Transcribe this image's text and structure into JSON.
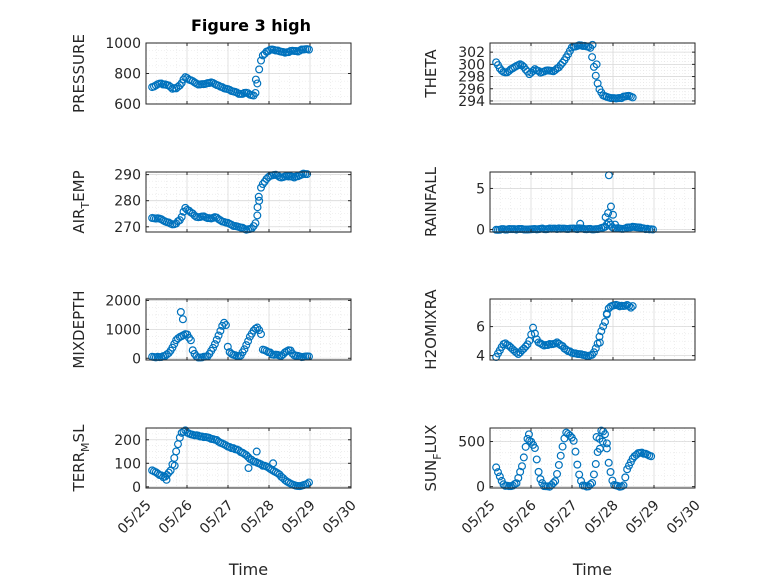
{
  "figure": {
    "title": "Figure 3 high"
  },
  "colors": {
    "marker": "#0072BD",
    "grid": "#d9d9d9",
    "axis": "#262626"
  },
  "chart_data": [
    {
      "id": "pressure",
      "type": "scatter",
      "ylabel": "PRESSURE",
      "ylabel_sub": "",
      "ylim": [
        600,
        1000
      ],
      "yticks": [
        600,
        800,
        1000
      ],
      "xlim": [
        0,
        5
      ],
      "x_tick_labels": [
        "05/25",
        "05/26",
        "05/27",
        "05/28",
        "05/29",
        "05/30"
      ],
      "show_x_ticklabels": false,
      "series_knots": [
        [
          0.15,
          710
        ],
        [
          0.35,
          735
        ],
        [
          0.55,
          720
        ],
        [
          0.65,
          700
        ],
        [
          0.75,
          705
        ],
        [
          0.85,
          730
        ],
        [
          0.95,
          775
        ],
        [
          1.1,
          755
        ],
        [
          1.3,
          725
        ],
        [
          1.5,
          735
        ],
        [
          1.6,
          745
        ],
        [
          1.75,
          720
        ],
        [
          1.9,
          705
        ],
        [
          2.1,
          685
        ],
        [
          2.3,
          665
        ],
        [
          2.45,
          675
        ],
        [
          2.55,
          660
        ],
        [
          2.65,
          655
        ],
        [
          2.7,
          700
        ],
        [
          2.78,
          870
        ],
        [
          2.85,
          920
        ],
        [
          2.95,
          945
        ],
        [
          3.05,
          960
        ],
        [
          3.2,
          950
        ],
        [
          3.4,
          935
        ],
        [
          3.55,
          950
        ],
        [
          3.7,
          945
        ],
        [
          3.85,
          960
        ],
        [
          4.0,
          955
        ]
      ],
      "outliers": [
        [
          2.68,
          760
        ]
      ]
    },
    {
      "id": "theta",
      "type": "scatter",
      "ylabel": "THETA",
      "ylabel_sub": "",
      "ylim": [
        293.5,
        303.5
      ],
      "yticks": [
        294,
        296,
        298,
        300,
        302
      ],
      "xlim": [
        0,
        5
      ],
      "x_tick_labels": [
        "05/25",
        "05/26",
        "05/27",
        "05/28",
        "05/29",
        "05/30"
      ],
      "show_x_ticklabels": false,
      "series_knots": [
        [
          0.15,
          300.4
        ],
        [
          0.25,
          299.2
        ],
        [
          0.35,
          298.6
        ],
        [
          0.45,
          298.8
        ],
        [
          0.6,
          299.6
        ],
        [
          0.75,
          300.0
        ],
        [
          0.85,
          299.4
        ],
        [
          0.95,
          298.4
        ],
        [
          1.1,
          299.2
        ],
        [
          1.25,
          298.6
        ],
        [
          1.4,
          299.1
        ],
        [
          1.55,
          298.8
        ],
        [
          1.7,
          299.6
        ],
        [
          1.8,
          300.6
        ],
        [
          1.9,
          301.6
        ],
        [
          2.0,
          302.8
        ],
        [
          2.2,
          303.1
        ],
        [
          2.35,
          303.0
        ],
        [
          2.45,
          302.7
        ],
        [
          2.55,
          299.0
        ],
        [
          2.65,
          296.2
        ],
        [
          2.75,
          295.0
        ],
        [
          2.85,
          294.6
        ],
        [
          3.0,
          294.4
        ],
        [
          3.2,
          294.5
        ],
        [
          3.35,
          294.9
        ],
        [
          3.45,
          294.7
        ],
        [
          3.5,
          294.6
        ]
      ],
      "outliers": [
        [
          2.5,
          303.2
        ],
        [
          2.6,
          300.0
        ]
      ]
    },
    {
      "id": "air_temp",
      "type": "scatter",
      "ylabel": "AIR",
      "ylabel_sub": "T",
      "ylabel_after": "EMP",
      "ylim": [
        268,
        291
      ],
      "yticks": [
        270,
        280,
        290
      ],
      "xlim": [
        0,
        5
      ],
      "x_tick_labels": [
        "05/25",
        "05/26",
        "05/27",
        "05/28",
        "05/29",
        "05/30"
      ],
      "show_x_ticklabels": false,
      "series_knots": [
        [
          0.15,
          273.5
        ],
        [
          0.35,
          273.0
        ],
        [
          0.55,
          271.5
        ],
        [
          0.7,
          270.8
        ],
        [
          0.85,
          273.0
        ],
        [
          0.95,
          277.2
        ],
        [
          1.1,
          275.5
        ],
        [
          1.25,
          273.5
        ],
        [
          1.4,
          274.0
        ],
        [
          1.55,
          273.2
        ],
        [
          1.7,
          273.8
        ],
        [
          1.85,
          272.0
        ],
        [
          2.0,
          271.5
        ],
        [
          2.15,
          270.2
        ],
        [
          2.3,
          269.8
        ],
        [
          2.45,
          269.0
        ],
        [
          2.6,
          269.3
        ],
        [
          2.7,
          272.5
        ],
        [
          2.8,
          285.0
        ],
        [
          2.9,
          287.5
        ],
        [
          3.0,
          289.2
        ],
        [
          3.15,
          290.0
        ],
        [
          3.3,
          288.8
        ],
        [
          3.45,
          289.5
        ],
        [
          3.6,
          289.0
        ],
        [
          3.75,
          289.6
        ],
        [
          3.85,
          290.3
        ],
        [
          3.95,
          290.0
        ]
      ],
      "outliers": [
        [
          2.72,
          277.5
        ],
        [
          2.75,
          281.5
        ]
      ]
    },
    {
      "id": "rainfall",
      "type": "scatter",
      "ylabel": "RAINFALL",
      "ylabel_sub": "",
      "ylim": [
        -0.3,
        7
      ],
      "yticks": [
        0,
        5
      ],
      "xlim": [
        0,
        5
      ],
      "x_tick_labels": [
        "05/25",
        "05/26",
        "05/27",
        "05/28",
        "05/29",
        "05/30"
      ],
      "show_x_ticklabels": false,
      "series_knots": [
        [
          0.15,
          0
        ],
        [
          1.0,
          0.05
        ],
        [
          1.5,
          0.1
        ],
        [
          2.2,
          0.1
        ],
        [
          2.4,
          0.05
        ],
        [
          2.6,
          0
        ],
        [
          2.8,
          0.3
        ],
        [
          2.9,
          0.9
        ],
        [
          3.0,
          0.2
        ],
        [
          3.2,
          0.1
        ],
        [
          3.5,
          0.3
        ],
        [
          3.65,
          0.2
        ],
        [
          3.85,
          0.05
        ],
        [
          4.0,
          0
        ]
      ],
      "outliers": [
        [
          2.2,
          0.7
        ],
        [
          2.82,
          1.5
        ],
        [
          2.88,
          2.0
        ],
        [
          2.95,
          2.8
        ],
        [
          3.0,
          1.8
        ],
        [
          2.9,
          6.6
        ],
        [
          3.05,
          0.6
        ]
      ]
    },
    {
      "id": "mixdepth",
      "type": "scatter",
      "ylabel": "MIXDEPTH",
      "ylabel_sub": "",
      "ylim": [
        -60,
        2050
      ],
      "yticks": [
        0,
        1000,
        2000
      ],
      "xlim": [
        0,
        5
      ],
      "x_tick_labels": [
        "05/25",
        "05/26",
        "05/27",
        "05/28",
        "05/29",
        "05/30"
      ],
      "show_x_ticklabels": false,
      "series_knots": [
        [
          0.15,
          40
        ],
        [
          0.45,
          60
        ],
        [
          0.6,
          250
        ],
        [
          0.75,
          650
        ],
        [
          0.9,
          800
        ],
        [
          1.0,
          850
        ],
        [
          1.1,
          600
        ],
        [
          1.15,
          200
        ],
        [
          1.25,
          30
        ],
        [
          1.5,
          60
        ],
        [
          1.65,
          400
        ],
        [
          1.8,
          900
        ],
        [
          1.9,
          1250
        ],
        [
          1.95,
          1150
        ],
        [
          2.0,
          300
        ],
        [
          2.1,
          120
        ],
        [
          2.3,
          80
        ],
        [
          2.4,
          300
        ],
        [
          2.55,
          800
        ],
        [
          2.7,
          1100
        ],
        [
          2.8,
          900
        ],
        [
          2.85,
          300
        ],
        [
          2.95,
          260
        ],
        [
          3.1,
          120
        ],
        [
          3.3,
          100
        ],
        [
          3.5,
          300
        ],
        [
          3.6,
          120
        ],
        [
          3.8,
          40
        ],
        [
          4.0,
          80
        ]
      ],
      "outliers": [
        [
          0.85,
          1600
        ],
        [
          0.9,
          1350
        ]
      ]
    },
    {
      "id": "h2omixra",
      "type": "scatter",
      "ylabel": "H2OMIXRA",
      "ylabel_sub": "",
      "ylim": [
        3.7,
        7.9
      ],
      "yticks": [
        4,
        6
      ],
      "xlim": [
        0,
        5
      ],
      "x_tick_labels": [
        "05/25",
        "05/26",
        "05/27",
        "05/28",
        "05/29",
        "05/30"
      ],
      "show_x_ticklabels": false,
      "series_knots": [
        [
          0.15,
          3.9
        ],
        [
          0.25,
          4.4
        ],
        [
          0.35,
          4.9
        ],
        [
          0.5,
          4.6
        ],
        [
          0.6,
          4.3
        ],
        [
          0.7,
          4.1
        ],
        [
          0.8,
          4.4
        ],
        [
          0.95,
          4.9
        ],
        [
          1.05,
          5.9
        ],
        [
          1.15,
          5.0
        ],
        [
          1.3,
          4.7
        ],
        [
          1.5,
          4.8
        ],
        [
          1.65,
          4.9
        ],
        [
          1.75,
          4.7
        ],
        [
          1.85,
          4.4
        ],
        [
          2.0,
          4.2
        ],
        [
          2.2,
          4.1
        ],
        [
          2.4,
          3.95
        ],
        [
          2.5,
          4.05
        ],
        [
          2.6,
          4.6
        ],
        [
          2.7,
          5.6
        ],
        [
          2.8,
          6.3
        ],
        [
          2.9,
          7.3
        ],
        [
          3.05,
          7.5
        ],
        [
          3.2,
          7.4
        ],
        [
          3.35,
          7.5
        ],
        [
          3.45,
          7.3
        ],
        [
          3.5,
          7.5
        ]
      ],
      "outliers": [
        [
          2.68,
          4.9
        ],
        [
          2.85,
          6.9
        ]
      ]
    },
    {
      "id": "terr_msl",
      "type": "scatter",
      "ylabel": "TERR",
      "ylabel_sub": "M",
      "ylabel_after": "SL",
      "ylim": [
        -5,
        250
      ],
      "yticks": [
        0,
        100,
        200
      ],
      "xlim": [
        0,
        5
      ],
      "x_tick_labels": [
        "05/25",
        "05/26",
        "05/27",
        "05/28",
        "05/29",
        "05/30"
      ],
      "show_x_ticklabels": true,
      "series_knots": [
        [
          0.15,
          70
        ],
        [
          0.3,
          55
        ],
        [
          0.45,
          40
        ],
        [
          0.6,
          70
        ],
        [
          0.75,
          160
        ],
        [
          0.85,
          225
        ],
        [
          0.95,
          240
        ],
        [
          1.05,
          225
        ],
        [
          1.3,
          215
        ],
        [
          1.5,
          210
        ],
        [
          1.7,
          200
        ],
        [
          1.85,
          185
        ],
        [
          2.0,
          170
        ],
        [
          2.2,
          160
        ],
        [
          2.4,
          140
        ],
        [
          2.6,
          110
        ],
        [
          2.8,
          95
        ],
        [
          3.0,
          80
        ],
        [
          3.2,
          60
        ],
        [
          3.35,
          35
        ],
        [
          3.5,
          15
        ],
        [
          3.65,
          5
        ],
        [
          3.8,
          3
        ],
        [
          4.0,
          20
        ]
      ],
      "outliers": [
        [
          0.5,
          30
        ],
        [
          0.7,
          90
        ],
        [
          2.5,
          80
        ],
        [
          2.7,
          150
        ],
        [
          3.1,
          100
        ]
      ]
    },
    {
      "id": "sun_flux",
      "type": "scatter",
      "ylabel": "SUN",
      "ylabel_sub": "F",
      "ylabel_after": "LUX",
      "ylim": [
        -15,
        650
      ],
      "yticks": [
        0,
        500
      ],
      "xlim": [
        0,
        5
      ],
      "x_tick_labels": [
        "05/25",
        "05/26",
        "05/27",
        "05/28",
        "05/29",
        "05/30"
      ],
      "show_x_ticklabels": true,
      "series_knots": [
        [
          0.15,
          210
        ],
        [
          0.25,
          100
        ],
        [
          0.35,
          10
        ],
        [
          0.5,
          0
        ],
        [
          0.65,
          40
        ],
        [
          0.8,
          250
        ],
        [
          0.9,
          530
        ],
        [
          1.0,
          500
        ],
        [
          1.1,
          420
        ],
        [
          1.2,
          120
        ],
        [
          1.3,
          5
        ],
        [
          1.45,
          0
        ],
        [
          1.6,
          60
        ],
        [
          1.75,
          400
        ],
        [
          1.85,
          600
        ],
        [
          1.95,
          570
        ],
        [
          2.05,
          500
        ],
        [
          2.15,
          180
        ],
        [
          2.25,
          10
        ],
        [
          2.4,
          0
        ],
        [
          2.5,
          50
        ],
        [
          2.6,
          300
        ],
        [
          2.7,
          630
        ],
        [
          2.8,
          600
        ],
        [
          2.9,
          250
        ],
        [
          3.0,
          30
        ],
        [
          3.1,
          5
        ],
        [
          3.25,
          0
        ],
        [
          3.35,
          200
        ],
        [
          3.5,
          330
        ],
        [
          3.65,
          380
        ],
        [
          3.8,
          360
        ],
        [
          3.95,
          330
        ]
      ],
      "outliers": [
        [
          0.95,
          580
        ],
        [
          2.6,
          550
        ],
        [
          2.68,
          420
        ],
        [
          2.75,
          500
        ],
        [
          2.85,
          480
        ]
      ]
    }
  ],
  "x_axis_label": "Time"
}
